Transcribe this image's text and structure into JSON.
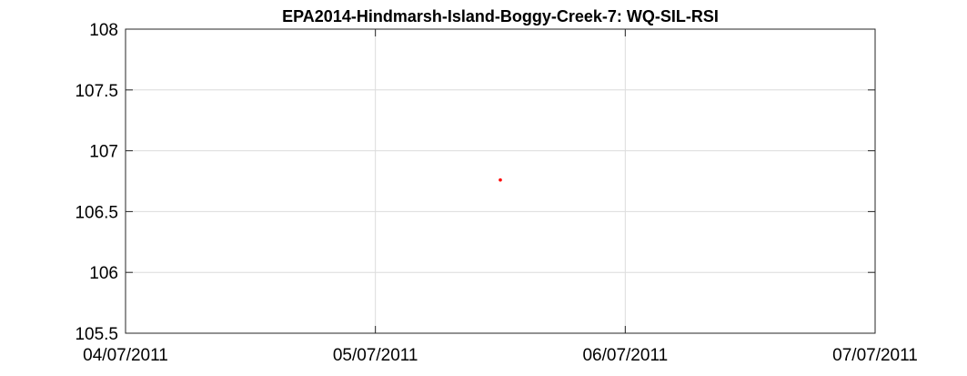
{
  "chart_data": {
    "type": "scatter",
    "title": "EPA2014-Hindmarsh-Island-Boggy-Creek-7: WQ-SIL-RSI",
    "xlabel": "",
    "ylabel": "",
    "x_axis": {
      "kind": "date",
      "range": [
        "04/07/2011",
        "07/07/2011"
      ],
      "tick_labels": [
        "04/07/2011",
        "05/07/2011",
        "06/07/2011",
        "07/07/2011"
      ]
    },
    "y_axis": {
      "range": [
        105.5,
        108
      ],
      "tick_labels": [
        "105.5",
        "106",
        "106.5",
        "107",
        "107.5",
        "108"
      ]
    },
    "grid": true,
    "series": [
      {
        "color": "#ff0000",
        "points": [
          {
            "x": "05/07/2011 12:00",
            "y": 106.76
          }
        ]
      }
    ]
  }
}
